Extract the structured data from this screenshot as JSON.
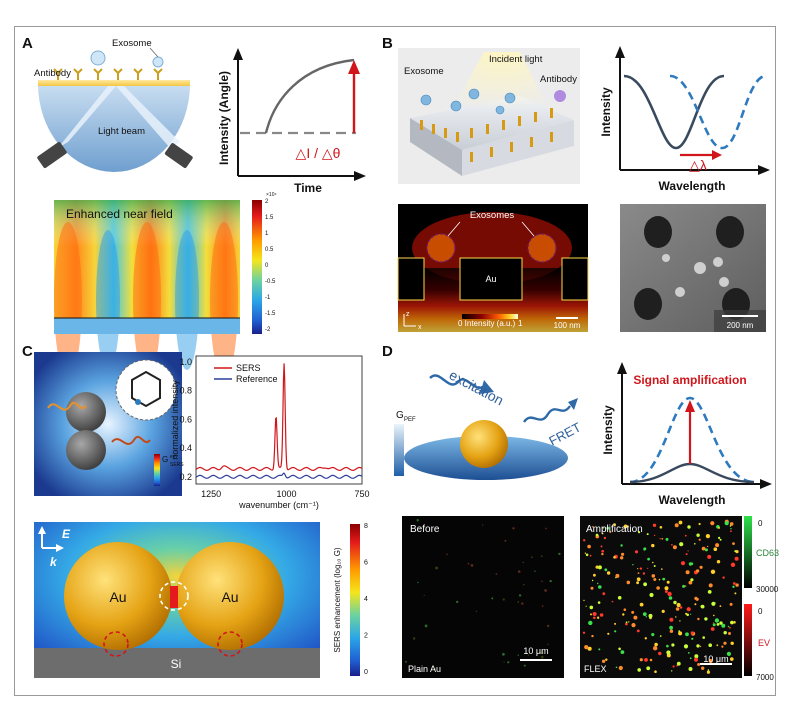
{
  "panels": {
    "a": {
      "label": "A",
      "exosome": "Exosome",
      "antibody": "Antibody",
      "light_beam": "Light beam",
      "ylabel": "Intensity (Angle)",
      "xlabel": "Time",
      "delta": "△I / △θ",
      "field_title": "Enhanced near field",
      "colorbar_exp": "×10⁴",
      "colorbar_ticks": [
        "2",
        "1.5",
        "1",
        "0.5",
        "0",
        "-0.5",
        "-1",
        "-1.5",
        "-2"
      ]
    },
    "b": {
      "label": "B",
      "incident_light": "Incident light",
      "exosome": "Exosome",
      "antibody": "Antibody",
      "ylabel": "Intensity",
      "xlabel": "Wavelength",
      "delta": "△λ",
      "exosomes": "Exosomes",
      "au": "Au",
      "axis_z": "z",
      "axis_x": "x",
      "intensity_label": "Intensity (a.u.)",
      "intensity_min": "0",
      "intensity_max": "1",
      "scale_fdtd": "100 nm",
      "scale_sem": "200 nm"
    },
    "c": {
      "label": "C",
      "g_label": "G",
      "g_sup": "em",
      "g_sub": "SERS",
      "legend": [
        "SERS",
        "Reference"
      ],
      "ylabel": "normalized intensity",
      "xlabel": "wavenumber (cm⁻¹)",
      "xticks": [
        "1250",
        "1000",
        "750"
      ],
      "yticks": [
        "0.2",
        "0.4",
        "0.6",
        "0.8",
        "1.0"
      ],
      "e_label": "E",
      "k_label": "k",
      "au1": "Au",
      "au2": "Au",
      "si": "Si",
      "colorbar_title": "SERS enhancement (log₁₀ G)",
      "colorbar_ticks": [
        "8",
        "6",
        "4",
        "2",
        "0"
      ]
    },
    "d": {
      "label": "D",
      "excitation": "excitation",
      "fret": "FRET",
      "gpef": "G",
      "gpef_sub": "PEF",
      "signal_amp": "Signal amplification",
      "ylabel": "Intensity",
      "xlabel": "Wavelength",
      "before": "Before",
      "plain_au": "Plain Au",
      "amplification": "Amplification",
      "flex": "FLEX",
      "scale": "10 μm",
      "cd63": "CD63",
      "cd63_min": "0",
      "cd63_max": "30000",
      "ev": "EV",
      "ev_min": "0",
      "ev_max": "7000"
    }
  },
  "colors": {
    "red": "#d0161b",
    "blue_dash": "#2e7abf",
    "dark_curve": "#3a4a5e",
    "gold": "#e8a20f"
  }
}
